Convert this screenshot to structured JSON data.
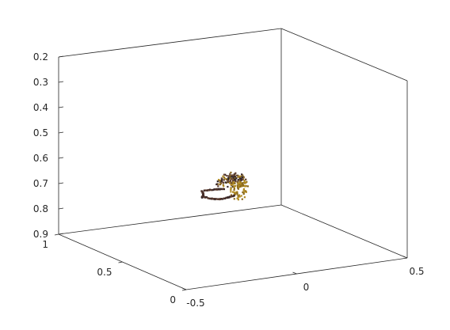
{
  "chart_data": {
    "type": "scatter",
    "projection": "3d",
    "title": "",
    "xlabel": "",
    "ylabel": "",
    "zlabel": "",
    "grid": false,
    "x_axis": {
      "ticks": [
        -0.5,
        0,
        0.5
      ],
      "tick_labels": [
        "-0.5",
        "0",
        "0.5"
      ],
      "lim": [
        -0.5,
        0.5
      ]
    },
    "y_axis": {
      "ticks": [
        0,
        0.5,
        1
      ],
      "tick_labels": [
        "0",
        "0.5",
        "1"
      ],
      "lim": [
        0,
        1
      ]
    },
    "z_axis": {
      "ticks": [
        0.2,
        0.3,
        0.4,
        0.5,
        0.6,
        0.7,
        0.8,
        0.9
      ],
      "tick_labels": [
        "0.2",
        "0.3",
        "0.4",
        "0.5",
        "0.6",
        "0.7",
        "0.8",
        "0.9"
      ],
      "lim": [
        0.2,
        0.9
      ],
      "reversed": true
    },
    "point_cloud": {
      "description": "dense cluster of small colored points forming a curled shape",
      "colors": [
        "#3a2a2a",
        "#5b3b2e",
        "#8b6a1e",
        "#b08a20",
        "#6a4a3a",
        "#2a2226"
      ]
    }
  }
}
